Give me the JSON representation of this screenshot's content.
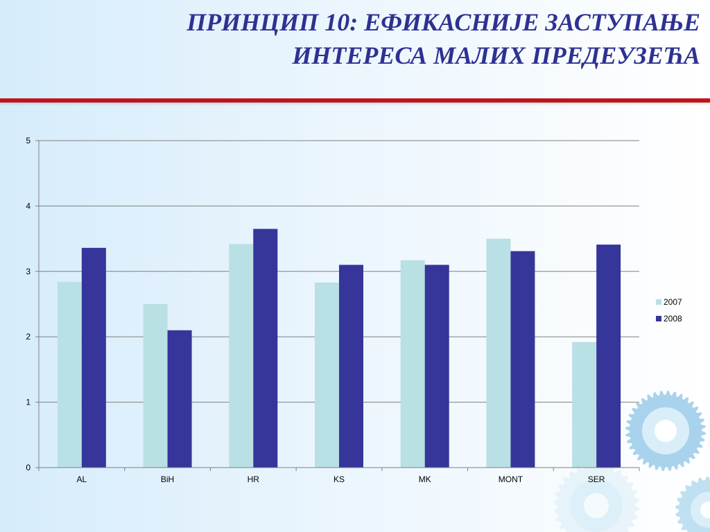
{
  "title": {
    "line1": "ПРИНЦИП 10: ЕФИКАСНИЈЕ ЗАСТУПАЊЕ",
    "line2": "ИНТЕРЕСА МАЛИХ ПРЕДЕУЗЕЋА"
  },
  "colors": {
    "title": "#2e3192",
    "rule": "#c0141c",
    "series_2007": "#b9e0e4",
    "series_2008": "#35359a",
    "gridline": "#7f7f7f"
  },
  "decoration": {
    "icon": "gear-icon"
  },
  "chart_data": {
    "type": "bar",
    "categories": [
      "AL",
      "BiH",
      "HR",
      "KS",
      "MK",
      "MONT",
      "SER"
    ],
    "series": [
      {
        "name": "2007",
        "values": [
          2.84,
          2.5,
          3.42,
          2.83,
          3.17,
          3.5,
          1.92
        ]
      },
      {
        "name": "2008",
        "values": [
          3.36,
          2.1,
          3.65,
          3.1,
          3.1,
          3.31,
          3.41
        ]
      }
    ],
    "ylim": [
      0,
      5
    ],
    "yticks": [
      "0",
      "1",
      "2",
      "3",
      "4",
      "5"
    ],
    "grid": true,
    "legend_position": "right"
  }
}
